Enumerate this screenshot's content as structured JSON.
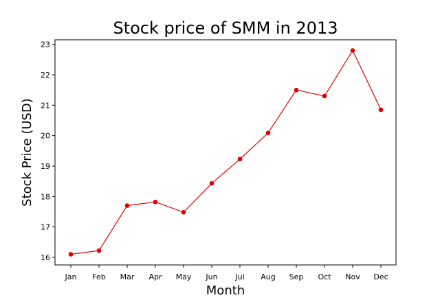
{
  "chart_data": {
    "type": "line",
    "title": "Stock price of SMM in 2013",
    "xlabel": "Month",
    "ylabel": "Stock Price (USD)",
    "categories": [
      "Jan",
      "Feb",
      "Mar",
      "Apr",
      "May",
      "Jun",
      "Jul",
      "Aug",
      "Sep",
      "Oct",
      "Nov",
      "Dec"
    ],
    "values": [
      16.1,
      16.22,
      17.7,
      17.82,
      17.48,
      18.43,
      19.23,
      20.09,
      21.5,
      21.3,
      22.8,
      20.85
    ],
    "ylim": [
      15.75,
      23.15
    ],
    "yticks": [
      16,
      17,
      18,
      19,
      20,
      21,
      22,
      23
    ],
    "color": "#e00000",
    "grid": false,
    "legend": "none"
  }
}
